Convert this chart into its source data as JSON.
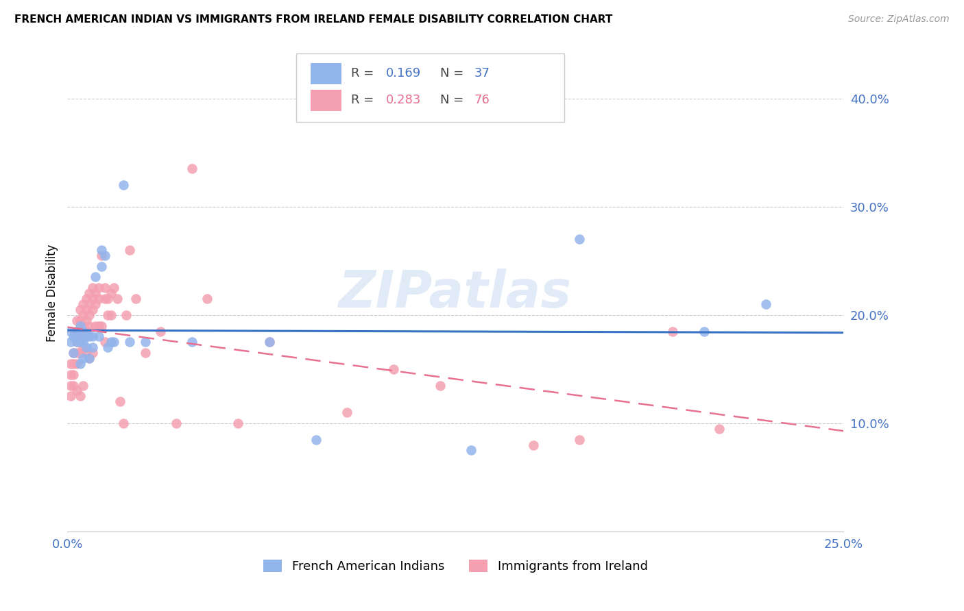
{
  "title": "FRENCH AMERICAN INDIAN VS IMMIGRANTS FROM IRELAND FEMALE DISABILITY CORRELATION CHART",
  "source": "Source: ZipAtlas.com",
  "ylabel": "Female Disability",
  "xlim": [
    0.0,
    0.25
  ],
  "ylim": [
    0.0,
    0.44
  ],
  "yticks": [
    0.1,
    0.2,
    0.3,
    0.4
  ],
  "ytick_labels": [
    "10.0%",
    "20.0%",
    "30.0%",
    "40.0%"
  ],
  "xtick_positions": [
    0.0,
    0.05,
    0.1,
    0.15,
    0.2,
    0.25
  ],
  "xtick_labels": [
    "0.0%",
    "",
    "",
    "",
    "",
    "25.0%"
  ],
  "group1_label": "French American Indians",
  "group1_R": 0.169,
  "group1_N": 37,
  "group1_color": "#92B4EC",
  "group2_label": "Immigrants from Ireland",
  "group2_R": 0.283,
  "group2_N": 76,
  "group2_color": "#F4A0B0",
  "watermark": "ZIPatlas",
  "blue_line_color": "#3A72C4",
  "pink_line_color": "#E87090",
  "axis_label_color": "#4472C4",
  "grid_color": "#CCCCCC",
  "group1_x": [
    0.001,
    0.001,
    0.002,
    0.002,
    0.003,
    0.003,
    0.003,
    0.004,
    0.004,
    0.004,
    0.005,
    0.005,
    0.005,
    0.006,
    0.006,
    0.007,
    0.007,
    0.008,
    0.008,
    0.009,
    0.01,
    0.011,
    0.011,
    0.012,
    0.013,
    0.014,
    0.015,
    0.018,
    0.02,
    0.025,
    0.04,
    0.065,
    0.08,
    0.13,
    0.165,
    0.205,
    0.225
  ],
  "group1_y": [
    0.185,
    0.175,
    0.18,
    0.165,
    0.185,
    0.18,
    0.175,
    0.19,
    0.175,
    0.155,
    0.185,
    0.175,
    0.16,
    0.18,
    0.17,
    0.18,
    0.16,
    0.18,
    0.17,
    0.235,
    0.18,
    0.245,
    0.26,
    0.255,
    0.17,
    0.175,
    0.175,
    0.32,
    0.175,
    0.175,
    0.175,
    0.175,
    0.085,
    0.075,
    0.27,
    0.185,
    0.21
  ],
  "group2_x": [
    0.001,
    0.001,
    0.001,
    0.001,
    0.002,
    0.002,
    0.002,
    0.002,
    0.003,
    0.003,
    0.003,
    0.003,
    0.003,
    0.003,
    0.004,
    0.004,
    0.004,
    0.004,
    0.004,
    0.004,
    0.005,
    0.005,
    0.005,
    0.005,
    0.005,
    0.005,
    0.006,
    0.006,
    0.006,
    0.006,
    0.006,
    0.007,
    0.007,
    0.007,
    0.007,
    0.007,
    0.008,
    0.008,
    0.008,
    0.008,
    0.009,
    0.009,
    0.009,
    0.01,
    0.01,
    0.01,
    0.011,
    0.011,
    0.012,
    0.012,
    0.012,
    0.013,
    0.013,
    0.014,
    0.014,
    0.015,
    0.016,
    0.017,
    0.018,
    0.019,
    0.02,
    0.022,
    0.025,
    0.03,
    0.035,
    0.04,
    0.045,
    0.055,
    0.065,
    0.09,
    0.105,
    0.12,
    0.15,
    0.165,
    0.195,
    0.21
  ],
  "group2_y": [
    0.155,
    0.145,
    0.135,
    0.125,
    0.165,
    0.155,
    0.145,
    0.135,
    0.195,
    0.185,
    0.175,
    0.165,
    0.155,
    0.13,
    0.205,
    0.195,
    0.185,
    0.175,
    0.165,
    0.125,
    0.21,
    0.2,
    0.19,
    0.18,
    0.17,
    0.135,
    0.215,
    0.205,
    0.195,
    0.185,
    0.165,
    0.22,
    0.21,
    0.2,
    0.19,
    0.16,
    0.225,
    0.215,
    0.205,
    0.165,
    0.22,
    0.21,
    0.19,
    0.225,
    0.215,
    0.19,
    0.255,
    0.19,
    0.225,
    0.215,
    0.175,
    0.215,
    0.2,
    0.22,
    0.2,
    0.225,
    0.215,
    0.12,
    0.1,
    0.2,
    0.26,
    0.215,
    0.165,
    0.185,
    0.1,
    0.335,
    0.215,
    0.1,
    0.175,
    0.11,
    0.15,
    0.135,
    0.08,
    0.085,
    0.185,
    0.095
  ]
}
